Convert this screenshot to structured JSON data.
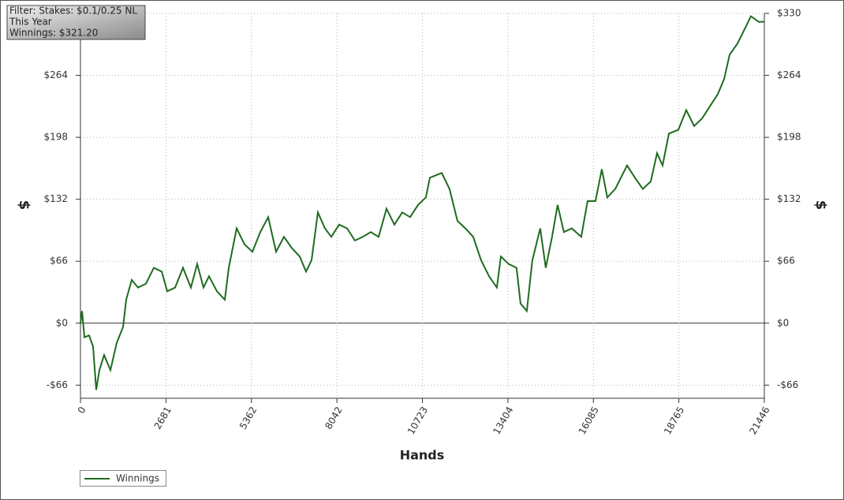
{
  "chart_data": {
    "type": "line",
    "annotations": [
      "Filter: Stakes: $0.1/0.25 NL",
      "This Year",
      "Winnings: $321.20"
    ],
    "x_label": "Hands",
    "y_label": "$",
    "xlim": [
      0,
      21446
    ],
    "xticks": [
      0,
      2681,
      5362,
      8042,
      10723,
      13404,
      16085,
      18765,
      21446
    ],
    "ylim": [
      -80,
      330
    ],
    "yticks": [
      {
        "value": -66,
        "label": "-$66"
      },
      {
        "value": 0,
        "label": "$0"
      },
      {
        "value": 66,
        "label": "$66"
      },
      {
        "value": 132,
        "label": "$132"
      },
      {
        "value": 198,
        "label": "$198"
      },
      {
        "value": 264,
        "label": "$264"
      },
      {
        "value": 330,
        "label": "$330"
      }
    ],
    "grid": true,
    "legend": "bottom-left",
    "x": [
      0,
      49,
      124,
      272,
      396,
      495,
      594,
      742,
      940,
      1138,
      1336,
      1435,
      1608,
      1806,
      2053,
      2300,
      2548,
      2721,
      2968,
      3215,
      3463,
      3661,
      3859,
      4032,
      4279,
      4527,
      4650,
      4898,
      5145,
      5392,
      5640,
      5887,
      6134,
      6382,
      6629,
      6876,
      7074,
      7247,
      7445,
      7668,
      7866,
      8113,
      8360,
      8608,
      8855,
      9102,
      9350,
      9597,
      9844,
      10092,
      10339,
      10586,
      10833,
      10957,
      11328,
      11575,
      11822,
      12070,
      12317,
      12564,
      12812,
      13059,
      13183,
      13430,
      13677,
      13800,
      13998,
      14172,
      14419,
      14592,
      14790,
      14963,
      15161,
      15408,
      15705,
      15903,
      16150,
      16350,
      16522,
      16770,
      17141,
      17388,
      17636,
      17883,
      18081,
      18254,
      18452,
      18749,
      18996,
      19244,
      19491,
      19738,
      19986,
      20184,
      20357,
      20604,
      20852,
      21025,
      21273,
      21446
    ],
    "series": [
      {
        "name": "Winnings",
        "color": "#1f6b1f",
        "values": [
          0,
          13,
          -15,
          -13,
          -25,
          -71,
          -50,
          -34,
          -50,
          -21,
          -4,
          25,
          46,
          38,
          42,
          59,
          55,
          34,
          38,
          59,
          38,
          63,
          38,
          50,
          34,
          25,
          59,
          101,
          84,
          76,
          97,
          113,
          76,
          92,
          80,
          71,
          55,
          67,
          118,
          101,
          92,
          105,
          101,
          88,
          92,
          97,
          92,
          122,
          105,
          118,
          113,
          126,
          134,
          155,
          160,
          143,
          109,
          101,
          92,
          67,
          50,
          38,
          71,
          63,
          59,
          21,
          13,
          67,
          101,
          59,
          92,
          126,
          97,
          101,
          92,
          130,
          130,
          164,
          134,
          143,
          168,
          155,
          143,
          151,
          181,
          168,
          202,
          206,
          227,
          210,
          218,
          231,
          244,
          260,
          286,
          298,
          315,
          327,
          321,
          321.2
        ]
      }
    ]
  }
}
